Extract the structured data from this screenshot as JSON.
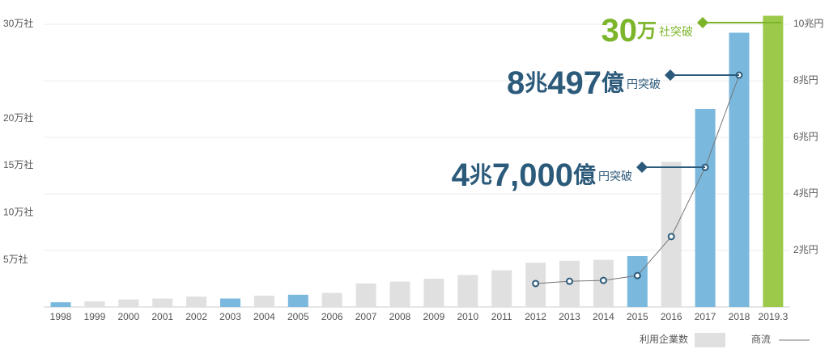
{
  "chart_data": {
    "type": "bar-line",
    "categories": [
      "1998",
      "1999",
      "2000",
      "2001",
      "2002",
      "2003",
      "2004",
      "2005",
      "2006",
      "2007",
      "2008",
      "2009",
      "2010",
      "2011",
      "2012",
      "2013",
      "2014",
      "2015",
      "2016",
      "2017",
      "2018",
      "2019.3"
    ],
    "series": [
      {
        "name": "利用企業数",
        "type": "bar",
        "color": "#e0e0e0",
        "colors": [
          "#7ab8de",
          "#e0e0e0",
          "#e0e0e0",
          "#e0e0e0",
          "#e0e0e0",
          "#7ab8de",
          "#e0e0e0",
          "#7ab8de",
          "#e0e0e0",
          "#e0e0e0",
          "#e0e0e0",
          "#e0e0e0",
          "#e0e0e0",
          "#e0e0e0",
          "#e0e0e0",
          "#e0e0e0",
          "#e0e0e0",
          "#7ab8de",
          "#e0e0e0",
          "#7ab8de",
          "#7ab8de",
          "#9cc94a"
        ],
        "values": [
          0.5,
          0.6,
          0.8,
          0.9,
          1.1,
          0.9,
          1.2,
          1.3,
          1.5,
          2.5,
          2.7,
          3.0,
          3.4,
          3.9,
          4.7,
          4.9,
          5.0,
          5.4,
          15.4,
          21.0,
          29.1,
          30.9
        ]
      },
      {
        "name": "商流",
        "type": "line",
        "axis": "y2",
        "color": "#777777",
        "values": [
          null,
          null,
          null,
          null,
          null,
          null,
          null,
          null,
          null,
          null,
          null,
          null,
          null,
          null,
          0.83,
          0.91,
          0.94,
          1.11,
          2.49,
          4.94,
          8.2,
          null
        ]
      }
    ],
    "ylim": [
      0,
      30
    ],
    "yticks": [
      {
        "value": 5,
        "label": "5万社"
      },
      {
        "value": 10,
        "label": "10万社"
      },
      {
        "value": 15,
        "label": "15万社"
      },
      {
        "value": 20,
        "label": "20万社"
      },
      {
        "value": 30,
        "label": "30万社"
      }
    ],
    "y2lim": [
      0,
      10
    ],
    "y2ticks": [
      {
        "value": 2,
        "label": "2兆円"
      },
      {
        "value": 4,
        "label": "4兆円"
      },
      {
        "value": 6,
        "label": "6兆円"
      },
      {
        "value": 8,
        "label": "8兆円"
      },
      {
        "value": 10,
        "label": "10兆円"
      }
    ],
    "grid": true,
    "annotations": [
      {
        "parts": [
          "30",
          "万",
          "社突破"
        ],
        "color": "#7cb52a"
      },
      {
        "parts": [
          "8",
          "兆",
          "497",
          "億",
          "円突破"
        ],
        "color": "#2c5a7a"
      },
      {
        "parts": [
          "4",
          "兆",
          "7,000",
          "億",
          "円突破"
        ],
        "color": "#2c5a7a"
      }
    ]
  }
}
